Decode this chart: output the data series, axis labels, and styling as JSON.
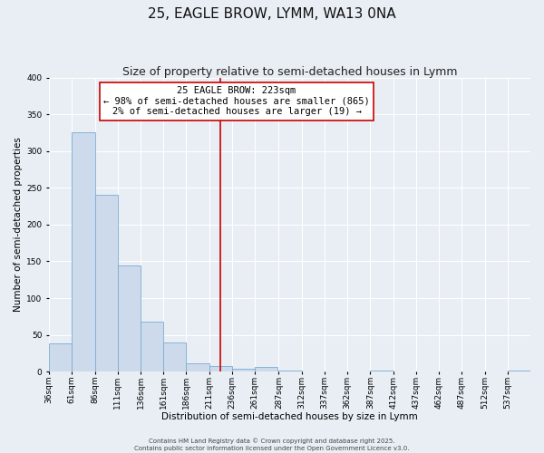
{
  "title": "25, EAGLE BROW, LYMM, WA13 0NA",
  "subtitle": "Size of property relative to semi-detached houses in Lymm",
  "xlabel": "Distribution of semi-detached houses by size in Lymm",
  "ylabel": "Number of semi-detached properties",
  "bin_edges": [
    36,
    61,
    86,
    111,
    136,
    161,
    186,
    211,
    236,
    261,
    287,
    312,
    337,
    362,
    387,
    412,
    437,
    462,
    487,
    512,
    537,
    562
  ],
  "bar_heights": [
    38,
    325,
    240,
    145,
    68,
    40,
    12,
    8,
    4,
    6,
    1,
    0,
    0,
    0,
    1,
    0,
    0,
    0,
    0,
    0,
    1
  ],
  "bar_color": "#ccdaeb",
  "bar_edgecolor": "#7aadd4",
  "vline_x": 223,
  "vline_color": "#cc0000",
  "annotation_text": "25 EAGLE BROW: 223sqm\n← 98% of semi-detached houses are smaller (865)\n2% of semi-detached houses are larger (19) →",
  "annotation_box_edgecolor": "#cc0000",
  "annotation_box_facecolor": "#ffffff",
  "ylim": [
    0,
    400
  ],
  "yticks": [
    0,
    50,
    100,
    150,
    200,
    250,
    300,
    350,
    400
  ],
  "bg_color": "#e8eef4",
  "grid_color": "#ffffff",
  "footer_line1": "Contains HM Land Registry data © Crown copyright and database right 2025.",
  "footer_line2": "Contains public sector information licensed under the Open Government Licence v3.0.",
  "title_fontsize": 11,
  "subtitle_fontsize": 9,
  "ylabel_fontsize": 7.5,
  "xlabel_fontsize": 7.5,
  "tick_fontsize": 6.5,
  "annotation_fontsize": 7.5,
  "footer_fontsize": 5
}
